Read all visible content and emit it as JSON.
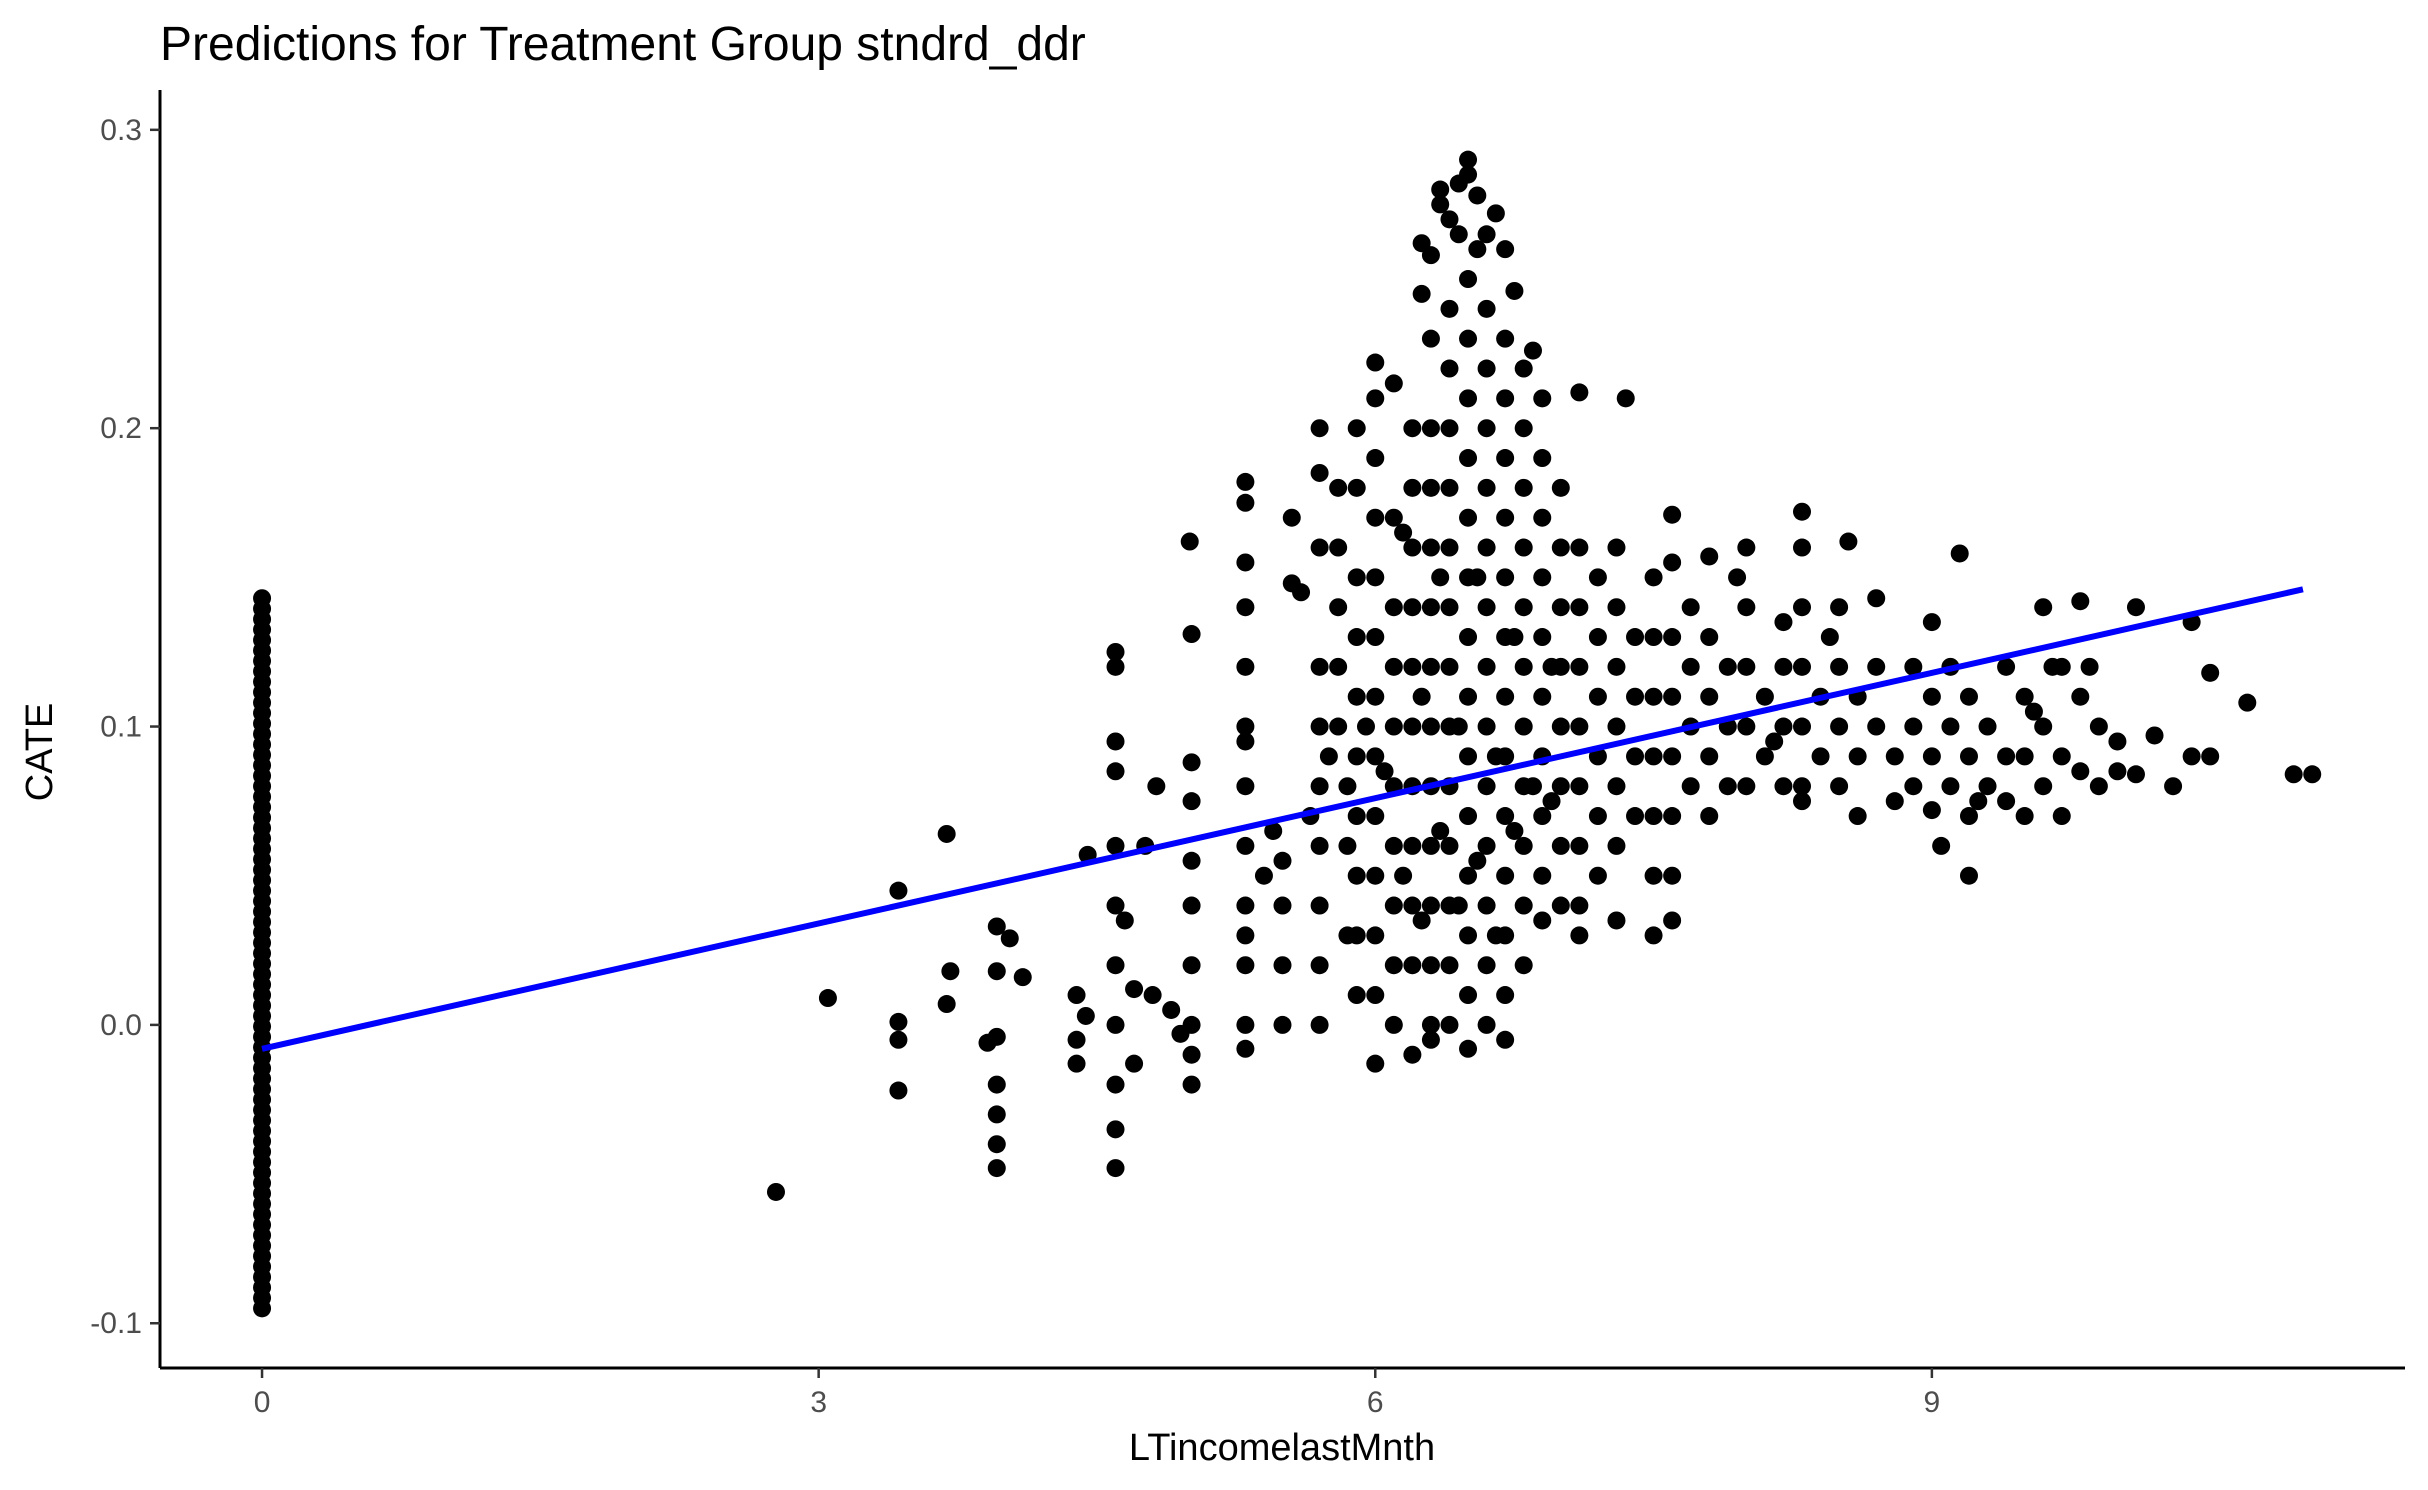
{
  "chart_data": {
    "type": "scatter",
    "title": "Predictions for Treatment Group stndrd_ddr",
    "xlabel": "LTincomelastMnth",
    "ylabel": "CATE",
    "xlim": [
      -0.55,
      11.55
    ],
    "ylim": [
      -0.115,
      0.31
    ],
    "x_ticks": [
      0,
      3,
      6,
      9
    ],
    "x_tick_labels": [
      "0",
      "3",
      "6",
      "9"
    ],
    "y_ticks": [
      -0.1,
      0.0,
      0.1,
      0.2,
      0.3
    ],
    "y_tick_labels": [
      "-0.1",
      "0.0",
      "0.1",
      "0.2",
      "0.3"
    ],
    "grid": false,
    "legend": "none",
    "point_color": "#000000",
    "trend_line_color": "#0000ff",
    "trend_line": {
      "x": [
        0,
        11.0
      ],
      "y": [
        -0.008,
        0.146
      ]
    },
    "points": [
      [
        2.77,
        -0.056
      ],
      [
        3.05,
        0.009
      ],
      [
        3.43,
        0.045
      ],
      [
        3.43,
        0.001
      ],
      [
        3.43,
        -0.005
      ],
      [
        3.43,
        -0.022
      ],
      [
        3.69,
        0.064
      ],
      [
        3.69,
        0.007
      ],
      [
        3.71,
        0.018
      ],
      [
        3.91,
        -0.006
      ],
      [
        3.96,
        0.033
      ],
      [
        3.96,
        0.018
      ],
      [
        3.96,
        -0.004
      ],
      [
        3.96,
        -0.02
      ],
      [
        3.96,
        -0.03
      ],
      [
        3.96,
        -0.04
      ],
      [
        3.96,
        -0.048
      ],
      [
        4.03,
        0.029
      ],
      [
        4.1,
        0.016
      ],
      [
        4.39,
        0.01
      ],
      [
        4.39,
        -0.005
      ],
      [
        4.39,
        -0.013
      ],
      [
        4.44,
        0.003
      ],
      [
        4.45,
        0.057
      ],
      [
        4.6,
        0.125
      ],
      [
        4.6,
        0.12
      ],
      [
        4.6,
        0.095
      ],
      [
        4.6,
        0.085
      ],
      [
        4.6,
        0.06
      ],
      [
        4.6,
        0.04
      ],
      [
        4.6,
        0.02
      ],
      [
        4.6,
        0.0
      ],
      [
        4.6,
        -0.02
      ],
      [
        4.6,
        -0.035
      ],
      [
        4.6,
        -0.048
      ],
      [
        4.65,
        0.035
      ],
      [
        4.7,
        0.012
      ],
      [
        4.7,
        -0.013
      ],
      [
        4.76,
        0.06
      ],
      [
        4.8,
        0.01
      ],
      [
        4.82,
        0.08
      ],
      [
        4.9,
        0.005
      ],
      [
        4.95,
        -0.003
      ],
      [
        5.0,
        0.162
      ],
      [
        5.01,
        0.131
      ],
      [
        5.01,
        0.088
      ],
      [
        5.01,
        0.075
      ],
      [
        5.01,
        0.055
      ],
      [
        5.01,
        0.04
      ],
      [
        5.01,
        0.02
      ],
      [
        5.01,
        0.0
      ],
      [
        5.01,
        -0.01
      ],
      [
        5.01,
        -0.02
      ],
      [
        5.3,
        0.095
      ],
      [
        5.3,
        0.08
      ],
      [
        5.3,
        0.06
      ],
      [
        5.3,
        0.04
      ],
      [
        5.3,
        0.02
      ],
      [
        5.3,
        0.0
      ],
      [
        5.3,
        -0.008
      ],
      [
        5.3,
        0.182
      ],
      [
        5.3,
        0.175
      ],
      [
        5.3,
        0.155
      ],
      [
        5.3,
        0.14
      ],
      [
        5.3,
        0.12
      ],
      [
        5.3,
        0.1
      ],
      [
        5.3,
        0.03
      ],
      [
        5.4,
        0.05
      ],
      [
        5.5,
        0.055
      ],
      [
        5.5,
        0.04
      ],
      [
        5.5,
        0.02
      ],
      [
        5.5,
        0.0
      ],
      [
        5.55,
        0.17
      ],
      [
        5.55,
        0.148
      ],
      [
        5.6,
        0.145
      ],
      [
        5.7,
        0.2
      ],
      [
        5.7,
        0.185
      ],
      [
        5.7,
        0.16
      ],
      [
        5.7,
        0.12
      ],
      [
        5.7,
        0.1
      ],
      [
        5.7,
        0.08
      ],
      [
        5.7,
        0.06
      ],
      [
        5.7,
        0.04
      ],
      [
        5.7,
        0.02
      ],
      [
        5.7,
        0.0
      ],
      [
        5.8,
        0.18
      ],
      [
        5.8,
        0.16
      ],
      [
        5.8,
        0.14
      ],
      [
        5.8,
        0.12
      ],
      [
        5.8,
        0.1
      ],
      [
        5.85,
        0.08
      ],
      [
        5.85,
        0.06
      ],
      [
        5.85,
        0.03
      ],
      [
        5.9,
        0.2
      ],
      [
        5.9,
        0.18
      ],
      [
        5.9,
        0.15
      ],
      [
        5.9,
        0.13
      ],
      [
        5.9,
        0.11
      ],
      [
        5.9,
        0.09
      ],
      [
        5.9,
        0.07
      ],
      [
        5.9,
        0.05
      ],
      [
        5.9,
        0.03
      ],
      [
        5.9,
        0.01
      ],
      [
        6.0,
        0.222
      ],
      [
        6.0,
        0.21
      ],
      [
        6.0,
        0.19
      ],
      [
        6.0,
        0.17
      ],
      [
        6.0,
        0.15
      ],
      [
        6.0,
        0.13
      ],
      [
        6.0,
        0.11
      ],
      [
        6.0,
        0.09
      ],
      [
        6.0,
        0.07
      ],
      [
        6.0,
        0.05
      ],
      [
        6.0,
        0.03
      ],
      [
        6.0,
        0.01
      ],
      [
        6.0,
        -0.013
      ],
      [
        6.1,
        0.215
      ],
      [
        6.1,
        0.17
      ],
      [
        6.1,
        0.14
      ],
      [
        6.1,
        0.12
      ],
      [
        6.1,
        0.1
      ],
      [
        6.1,
        0.08
      ],
      [
        6.1,
        0.06
      ],
      [
        6.1,
        0.04
      ],
      [
        6.1,
        0.02
      ],
      [
        6.1,
        0.0
      ],
      [
        6.2,
        0.2
      ],
      [
        6.2,
        0.18
      ],
      [
        6.2,
        0.16
      ],
      [
        6.2,
        0.14
      ],
      [
        6.2,
        0.12
      ],
      [
        6.2,
        0.1
      ],
      [
        6.2,
        0.08
      ],
      [
        6.2,
        0.06
      ],
      [
        6.2,
        0.04
      ],
      [
        6.2,
        0.02
      ],
      [
        6.2,
        -0.01
      ],
      [
        6.25,
        0.245
      ],
      [
        6.25,
        0.262
      ],
      [
        6.3,
        0.258
      ],
      [
        6.3,
        0.23
      ],
      [
        6.3,
        0.2
      ],
      [
        6.3,
        0.18
      ],
      [
        6.3,
        0.16
      ],
      [
        6.3,
        0.14
      ],
      [
        6.3,
        0.12
      ],
      [
        6.3,
        0.1
      ],
      [
        6.3,
        0.08
      ],
      [
        6.3,
        0.06
      ],
      [
        6.3,
        0.04
      ],
      [
        6.3,
        0.02
      ],
      [
        6.3,
        0.0
      ],
      [
        6.3,
        -0.005
      ],
      [
        6.35,
        0.28
      ],
      [
        6.35,
        0.275
      ],
      [
        6.4,
        0.27
      ],
      [
        6.4,
        0.24
      ],
      [
        6.4,
        0.22
      ],
      [
        6.4,
        0.2
      ],
      [
        6.4,
        0.18
      ],
      [
        6.4,
        0.16
      ],
      [
        6.4,
        0.14
      ],
      [
        6.4,
        0.12
      ],
      [
        6.4,
        0.1
      ],
      [
        6.4,
        0.08
      ],
      [
        6.4,
        0.06
      ],
      [
        6.4,
        0.04
      ],
      [
        6.4,
        0.02
      ],
      [
        6.4,
        0.0
      ],
      [
        6.45,
        0.282
      ],
      [
        6.45,
        0.265
      ],
      [
        6.5,
        0.29
      ],
      [
        6.5,
        0.285
      ],
      [
        6.5,
        0.25
      ],
      [
        6.5,
        0.23
      ],
      [
        6.5,
        0.21
      ],
      [
        6.5,
        0.19
      ],
      [
        6.5,
        0.17
      ],
      [
        6.5,
        0.15
      ],
      [
        6.5,
        0.13
      ],
      [
        6.5,
        0.11
      ],
      [
        6.5,
        0.09
      ],
      [
        6.5,
        0.07
      ],
      [
        6.5,
        0.05
      ],
      [
        6.5,
        0.03
      ],
      [
        6.5,
        0.01
      ],
      [
        6.5,
        -0.008
      ],
      [
        6.55,
        0.278
      ],
      [
        6.55,
        0.26
      ],
      [
        6.6,
        0.265
      ],
      [
        6.6,
        0.24
      ],
      [
        6.6,
        0.22
      ],
      [
        6.6,
        0.2
      ],
      [
        6.6,
        0.18
      ],
      [
        6.6,
        0.16
      ],
      [
        6.6,
        0.14
      ],
      [
        6.6,
        0.12
      ],
      [
        6.6,
        0.1
      ],
      [
        6.6,
        0.08
      ],
      [
        6.6,
        0.06
      ],
      [
        6.6,
        0.04
      ],
      [
        6.6,
        0.02
      ],
      [
        6.6,
        0.0
      ],
      [
        6.65,
        0.272
      ],
      [
        6.7,
        0.26
      ],
      [
        6.7,
        0.23
      ],
      [
        6.7,
        0.21
      ],
      [
        6.7,
        0.19
      ],
      [
        6.7,
        0.17
      ],
      [
        6.7,
        0.15
      ],
      [
        6.7,
        0.13
      ],
      [
        6.7,
        0.11
      ],
      [
        6.7,
        0.09
      ],
      [
        6.7,
        0.07
      ],
      [
        6.7,
        0.05
      ],
      [
        6.7,
        0.03
      ],
      [
        6.7,
        0.01
      ],
      [
        6.7,
        -0.005
      ],
      [
        6.75,
        0.246
      ],
      [
        6.8,
        0.22
      ],
      [
        6.8,
        0.2
      ],
      [
        6.8,
        0.18
      ],
      [
        6.8,
        0.16
      ],
      [
        6.8,
        0.14
      ],
      [
        6.8,
        0.12
      ],
      [
        6.8,
        0.1
      ],
      [
        6.8,
        0.08
      ],
      [
        6.8,
        0.06
      ],
      [
        6.8,
        0.04
      ],
      [
        6.8,
        0.02
      ],
      [
        6.85,
        0.226
      ],
      [
        6.9,
        0.21
      ],
      [
        6.9,
        0.19
      ],
      [
        6.9,
        0.17
      ],
      [
        6.9,
        0.15
      ],
      [
        6.9,
        0.13
      ],
      [
        6.9,
        0.11
      ],
      [
        6.9,
        0.09
      ],
      [
        6.9,
        0.07
      ],
      [
        6.9,
        0.05
      ],
      [
        6.9,
        0.035
      ],
      [
        7.0,
        0.18
      ],
      [
        7.0,
        0.16
      ],
      [
        7.0,
        0.14
      ],
      [
        7.0,
        0.12
      ],
      [
        7.0,
        0.1
      ],
      [
        7.0,
        0.08
      ],
      [
        7.0,
        0.06
      ],
      [
        7.0,
        0.04
      ],
      [
        7.1,
        0.212
      ],
      [
        7.1,
        0.16
      ],
      [
        7.1,
        0.14
      ],
      [
        7.1,
        0.12
      ],
      [
        7.1,
        0.1
      ],
      [
        7.1,
        0.08
      ],
      [
        7.1,
        0.06
      ],
      [
        7.1,
        0.04
      ],
      [
        7.1,
        0.03
      ],
      [
        7.2,
        0.15
      ],
      [
        7.2,
        0.13
      ],
      [
        7.2,
        0.11
      ],
      [
        7.2,
        0.09
      ],
      [
        7.2,
        0.07
      ],
      [
        7.2,
        0.05
      ],
      [
        7.3,
        0.16
      ],
      [
        7.3,
        0.14
      ],
      [
        7.3,
        0.12
      ],
      [
        7.3,
        0.1
      ],
      [
        7.3,
        0.08
      ],
      [
        7.3,
        0.06
      ],
      [
        7.3,
        0.035
      ],
      [
        7.35,
        0.21
      ],
      [
        7.4,
        0.13
      ],
      [
        7.4,
        0.11
      ],
      [
        7.4,
        0.09
      ],
      [
        7.4,
        0.07
      ],
      [
        7.5,
        0.15
      ],
      [
        7.5,
        0.13
      ],
      [
        7.5,
        0.11
      ],
      [
        7.5,
        0.09
      ],
      [
        7.5,
        0.07
      ],
      [
        7.5,
        0.05
      ],
      [
        7.5,
        0.03
      ],
      [
        7.6,
        0.171
      ],
      [
        7.6,
        0.155
      ],
      [
        7.6,
        0.13
      ],
      [
        7.6,
        0.11
      ],
      [
        7.6,
        0.09
      ],
      [
        7.6,
        0.07
      ],
      [
        7.6,
        0.05
      ],
      [
        7.6,
        0.035
      ],
      [
        7.7,
        0.14
      ],
      [
        7.7,
        0.12
      ],
      [
        7.7,
        0.1
      ],
      [
        7.7,
        0.08
      ],
      [
        7.8,
        0.157
      ],
      [
        7.8,
        0.13
      ],
      [
        7.8,
        0.11
      ],
      [
        7.8,
        0.09
      ],
      [
        7.8,
        0.07
      ],
      [
        7.9,
        0.12
      ],
      [
        7.9,
        0.1
      ],
      [
        7.9,
        0.08
      ],
      [
        8.0,
        0.16
      ],
      [
        8.0,
        0.14
      ],
      [
        8.0,
        0.12
      ],
      [
        8.0,
        0.1
      ],
      [
        8.0,
        0.08
      ],
      [
        8.1,
        0.11
      ],
      [
        8.1,
        0.09
      ],
      [
        8.2,
        0.135
      ],
      [
        8.2,
        0.12
      ],
      [
        8.2,
        0.1
      ],
      [
        8.2,
        0.08
      ],
      [
        8.3,
        0.172
      ],
      [
        8.3,
        0.16
      ],
      [
        8.3,
        0.14
      ],
      [
        8.3,
        0.12
      ],
      [
        8.3,
        0.1
      ],
      [
        8.3,
        0.08
      ],
      [
        8.3,
        0.075
      ],
      [
        8.4,
        0.11
      ],
      [
        8.4,
        0.09
      ],
      [
        8.5,
        0.14
      ],
      [
        8.5,
        0.12
      ],
      [
        8.5,
        0.1
      ],
      [
        8.5,
        0.08
      ],
      [
        8.55,
        0.162
      ],
      [
        8.6,
        0.11
      ],
      [
        8.6,
        0.09
      ],
      [
        8.6,
        0.07
      ],
      [
        8.7,
        0.143
      ],
      [
        8.7,
        0.12
      ],
      [
        8.7,
        0.1
      ],
      [
        8.8,
        0.09
      ],
      [
        8.8,
        0.075
      ],
      [
        8.9,
        0.12
      ],
      [
        8.9,
        0.1
      ],
      [
        8.9,
        0.08
      ],
      [
        9.0,
        0.135
      ],
      [
        9.0,
        0.11
      ],
      [
        9.0,
        0.09
      ],
      [
        9.0,
        0.072
      ],
      [
        9.1,
        0.12
      ],
      [
        9.1,
        0.1
      ],
      [
        9.1,
        0.08
      ],
      [
        9.15,
        0.158
      ],
      [
        9.2,
        0.11
      ],
      [
        9.2,
        0.09
      ],
      [
        9.2,
        0.07
      ],
      [
        9.2,
        0.05
      ],
      [
        9.3,
        0.1
      ],
      [
        9.3,
        0.08
      ],
      [
        9.4,
        0.12
      ],
      [
        9.4,
        0.09
      ],
      [
        9.4,
        0.075
      ],
      [
        9.5,
        0.11
      ],
      [
        9.5,
        0.09
      ],
      [
        9.5,
        0.07
      ],
      [
        9.6,
        0.14
      ],
      [
        9.6,
        0.1
      ],
      [
        9.6,
        0.08
      ],
      [
        9.7,
        0.12
      ],
      [
        9.7,
        0.09
      ],
      [
        9.7,
        0.07
      ],
      [
        9.8,
        0.142
      ],
      [
        9.8,
        0.11
      ],
      [
        9.8,
        0.085
      ],
      [
        9.9,
        0.1
      ],
      [
        9.9,
        0.08
      ],
      [
        10.0,
        0.095
      ],
      [
        10.0,
        0.085
      ],
      [
        10.1,
        0.14
      ],
      [
        10.2,
        0.097
      ],
      [
        10.3,
        0.08
      ],
      [
        10.4,
        0.135
      ],
      [
        10.4,
        0.09
      ],
      [
        10.5,
        0.118
      ],
      [
        10.5,
        0.09
      ],
      [
        10.1,
        0.084
      ],
      [
        10.7,
        0.108
      ],
      [
        11.05,
        0.084
      ],
      [
        10.95,
        0.084
      ],
      [
        9.55,
        0.105
      ],
      [
        9.65,
        0.12
      ],
      [
        9.85,
        0.12
      ],
      [
        8.45,
        0.13
      ],
      [
        7.95,
        0.15
      ],
      [
        8.15,
        0.095
      ],
      [
        9.05,
        0.06
      ],
      [
        9.25,
        0.075
      ],
      [
        6.15,
        0.165
      ],
      [
        6.35,
        0.15
      ],
      [
        6.55,
        0.15
      ],
      [
        6.75,
        0.13
      ],
      [
        6.95,
        0.12
      ],
      [
        6.25,
        0.11
      ],
      [
        6.45,
        0.1
      ],
      [
        6.65,
        0.09
      ],
      [
        6.85,
        0.08
      ],
      [
        6.05,
        0.085
      ],
      [
        6.95,
        0.075
      ],
      [
        6.15,
        0.05
      ],
      [
        6.35,
        0.065
      ],
      [
        6.55,
        0.055
      ],
      [
        6.75,
        0.065
      ],
      [
        6.45,
        0.04
      ],
      [
        6.65,
        0.03
      ],
      [
        6.25,
        0.035
      ],
      [
        5.95,
        0.1
      ],
      [
        5.75,
        0.09
      ],
      [
        5.65,
        0.07
      ],
      [
        5.45,
        0.065
      ]
    ]
  }
}
